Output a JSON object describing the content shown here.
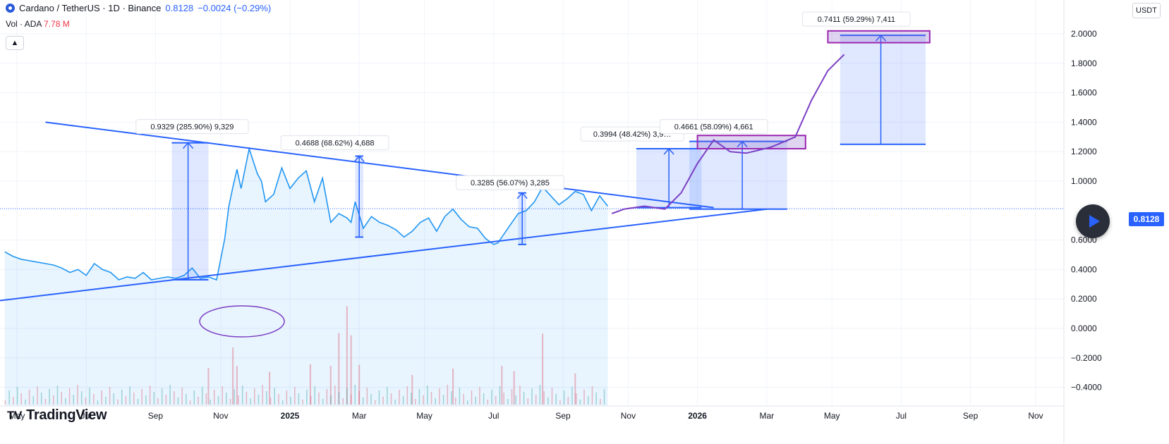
{
  "header": {
    "symbol": "Cardano / TetherUS · 1D · Binance",
    "price": "0.8128",
    "change": "−0.0024 (−0.29%)",
    "volume_label": "Vol · ADA",
    "volume_value": "7.78 M",
    "collapse_icon": "chevron-up-icon"
  },
  "axis": {
    "unit": "USDT",
    "current_price": "0.8128"
  },
  "brand": {
    "name": "TradingView",
    "icon": "tradingview-logo-icon"
  },
  "controls": {
    "play_icon": "play-icon"
  },
  "colors": {
    "accent": "#2962ff",
    "line": "#2196f3",
    "drawing": "#7e57c2",
    "projection": "#2962ff"
  },
  "chart_data": {
    "type": "line",
    "ylim": [
      -0.45,
      2.2
    ],
    "yticks": [
      {
        "value": 2.0,
        "label": "2.0000"
      },
      {
        "value": 1.8,
        "label": "1.8000"
      },
      {
        "value": 1.6,
        "label": "1.6000"
      },
      {
        "value": 1.4,
        "label": "1.4000"
      },
      {
        "value": 1.2,
        "label": "1.2000"
      },
      {
        "value": 1.0,
        "label": "1.0000"
      },
      {
        "value": 0.6,
        "label": "0.6000"
      },
      {
        "value": 0.4,
        "label": "0.4000"
      },
      {
        "value": 0.2,
        "label": "0.2000"
      },
      {
        "value": 0.0,
        "label": "0.0000"
      },
      {
        "value": -0.2,
        "label": "−0.2000"
      },
      {
        "value": -0.4,
        "label": "−0.4000"
      }
    ],
    "xticks": [
      {
        "value": 2024.33,
        "label": "May"
      },
      {
        "value": 2024.5,
        "label": "Jul"
      },
      {
        "value": 2024.67,
        "label": "Sep"
      },
      {
        "value": 2024.83,
        "label": "Nov"
      },
      {
        "value": 2025.0,
        "label": "2025"
      },
      {
        "value": 2025.17,
        "label": "Mar"
      },
      {
        "value": 2025.33,
        "label": "May"
      },
      {
        "value": 2025.5,
        "label": "Jul"
      },
      {
        "value": 2025.67,
        "label": "Sep"
      },
      {
        "value": 2025.83,
        "label": "Nov"
      },
      {
        "value": 2026.0,
        "label": "2026"
      },
      {
        "value": 2026.17,
        "label": "Mar"
      },
      {
        "value": 2026.33,
        "label": "May"
      },
      {
        "value": 2026.5,
        "label": "Jul"
      },
      {
        "value": 2026.67,
        "label": "Sep"
      },
      {
        "value": 2026.83,
        "label": "Nov"
      }
    ],
    "series": [
      {
        "x": [
          2024.3,
          2024.32,
          2024.34,
          2024.36,
          2024.38,
          2024.4,
          2024.42,
          2024.44,
          2024.46,
          2024.48,
          2024.5,
          2024.52,
          2024.54,
          2024.56,
          2024.58,
          2024.6,
          2024.62,
          2024.64,
          2024.66,
          2024.68,
          2024.7,
          2024.72,
          2024.74,
          2024.76,
          2024.78,
          2024.8,
          2024.82,
          2024.84,
          2024.85,
          2024.86,
          2024.87,
          2024.88,
          2024.9,
          2024.92,
          2024.93,
          2024.94,
          2024.96,
          2024.98,
          2025.0,
          2025.02,
          2025.04,
          2025.06,
          2025.08,
          2025.1,
          2025.12,
          2025.14,
          2025.15,
          2025.16,
          2025.18,
          2025.2,
          2025.22,
          2025.24,
          2025.26,
          2025.28,
          2025.3,
          2025.32,
          2025.34,
          2025.36,
          2025.38,
          2025.4,
          2025.42,
          2025.44,
          2025.46,
          2025.48,
          2025.5,
          2025.51,
          2025.52,
          2025.54,
          2025.56,
          2025.58,
          2025.6,
          2025.62,
          2025.64,
          2025.66,
          2025.68,
          2025.7,
          2025.72,
          2025.74,
          2025.76,
          2025.78
        ],
        "y": [
          0.52,
          0.49,
          0.47,
          0.46,
          0.45,
          0.44,
          0.43,
          0.41,
          0.38,
          0.4,
          0.36,
          0.44,
          0.4,
          0.38,
          0.33,
          0.35,
          0.34,
          0.38,
          0.33,
          0.34,
          0.35,
          0.34,
          0.36,
          0.41,
          0.34,
          0.35,
          0.33,
          0.61,
          0.83,
          0.96,
          1.08,
          0.95,
          1.22,
          1.05,
          1.0,
          0.86,
          0.91,
          1.09,
          0.95,
          1.02,
          1.07,
          0.86,
          1.02,
          0.72,
          0.78,
          0.75,
          0.72,
          0.86,
          0.68,
          0.76,
          0.72,
          0.7,
          0.67,
          0.62,
          0.66,
          0.72,
          0.75,
          0.66,
          0.76,
          0.81,
          0.74,
          0.69,
          0.68,
          0.61,
          0.57,
          0.58,
          0.62,
          0.7,
          0.78,
          0.8,
          0.86,
          0.96,
          0.9,
          0.84,
          0.88,
          0.93,
          0.91,
          0.8,
          0.9,
          0.83
        ]
      }
    ],
    "volume": [
      {
        "x": 2024.8,
        "v": 6.9
      },
      {
        "x": 2024.86,
        "v": 10.8
      },
      {
        "x": 2024.87,
        "v": 7.3
      },
      {
        "x": 2024.95,
        "v": 6.2
      },
      {
        "x": 2025.05,
        "v": 7.6
      },
      {
        "x": 2025.1,
        "v": 7.3
      },
      {
        "x": 2025.12,
        "v": 13.5
      },
      {
        "x": 2025.14,
        "v": 18.6
      },
      {
        "x": 2025.15,
        "v": 13.1
      },
      {
        "x": 2025.17,
        "v": 7.5
      },
      {
        "x": 2025.3,
        "v": 5.6
      },
      {
        "x": 2025.4,
        "v": 6.8
      },
      {
        "x": 2025.52,
        "v": 7.3
      },
      {
        "x": 2025.55,
        "v": 6.3
      },
      {
        "x": 2025.62,
        "v": 13.4
      },
      {
        "x": 2025.7,
        "v": 5.9
      }
    ],
    "annotations": [
      {
        "label": "0.9329 (285.90%) 9,329"
      },
      {
        "label": "0.4688 (68.62%) 4,688"
      },
      {
        "label": "0.3285 (56.07%) 3,285"
      },
      {
        "label": "0.3994 (48.42%) 3,9…"
      },
      {
        "label": "0.4661 (58.09%) 4,661"
      },
      {
        "label": "0.7411 (59.29%) 7,411"
      }
    ]
  }
}
